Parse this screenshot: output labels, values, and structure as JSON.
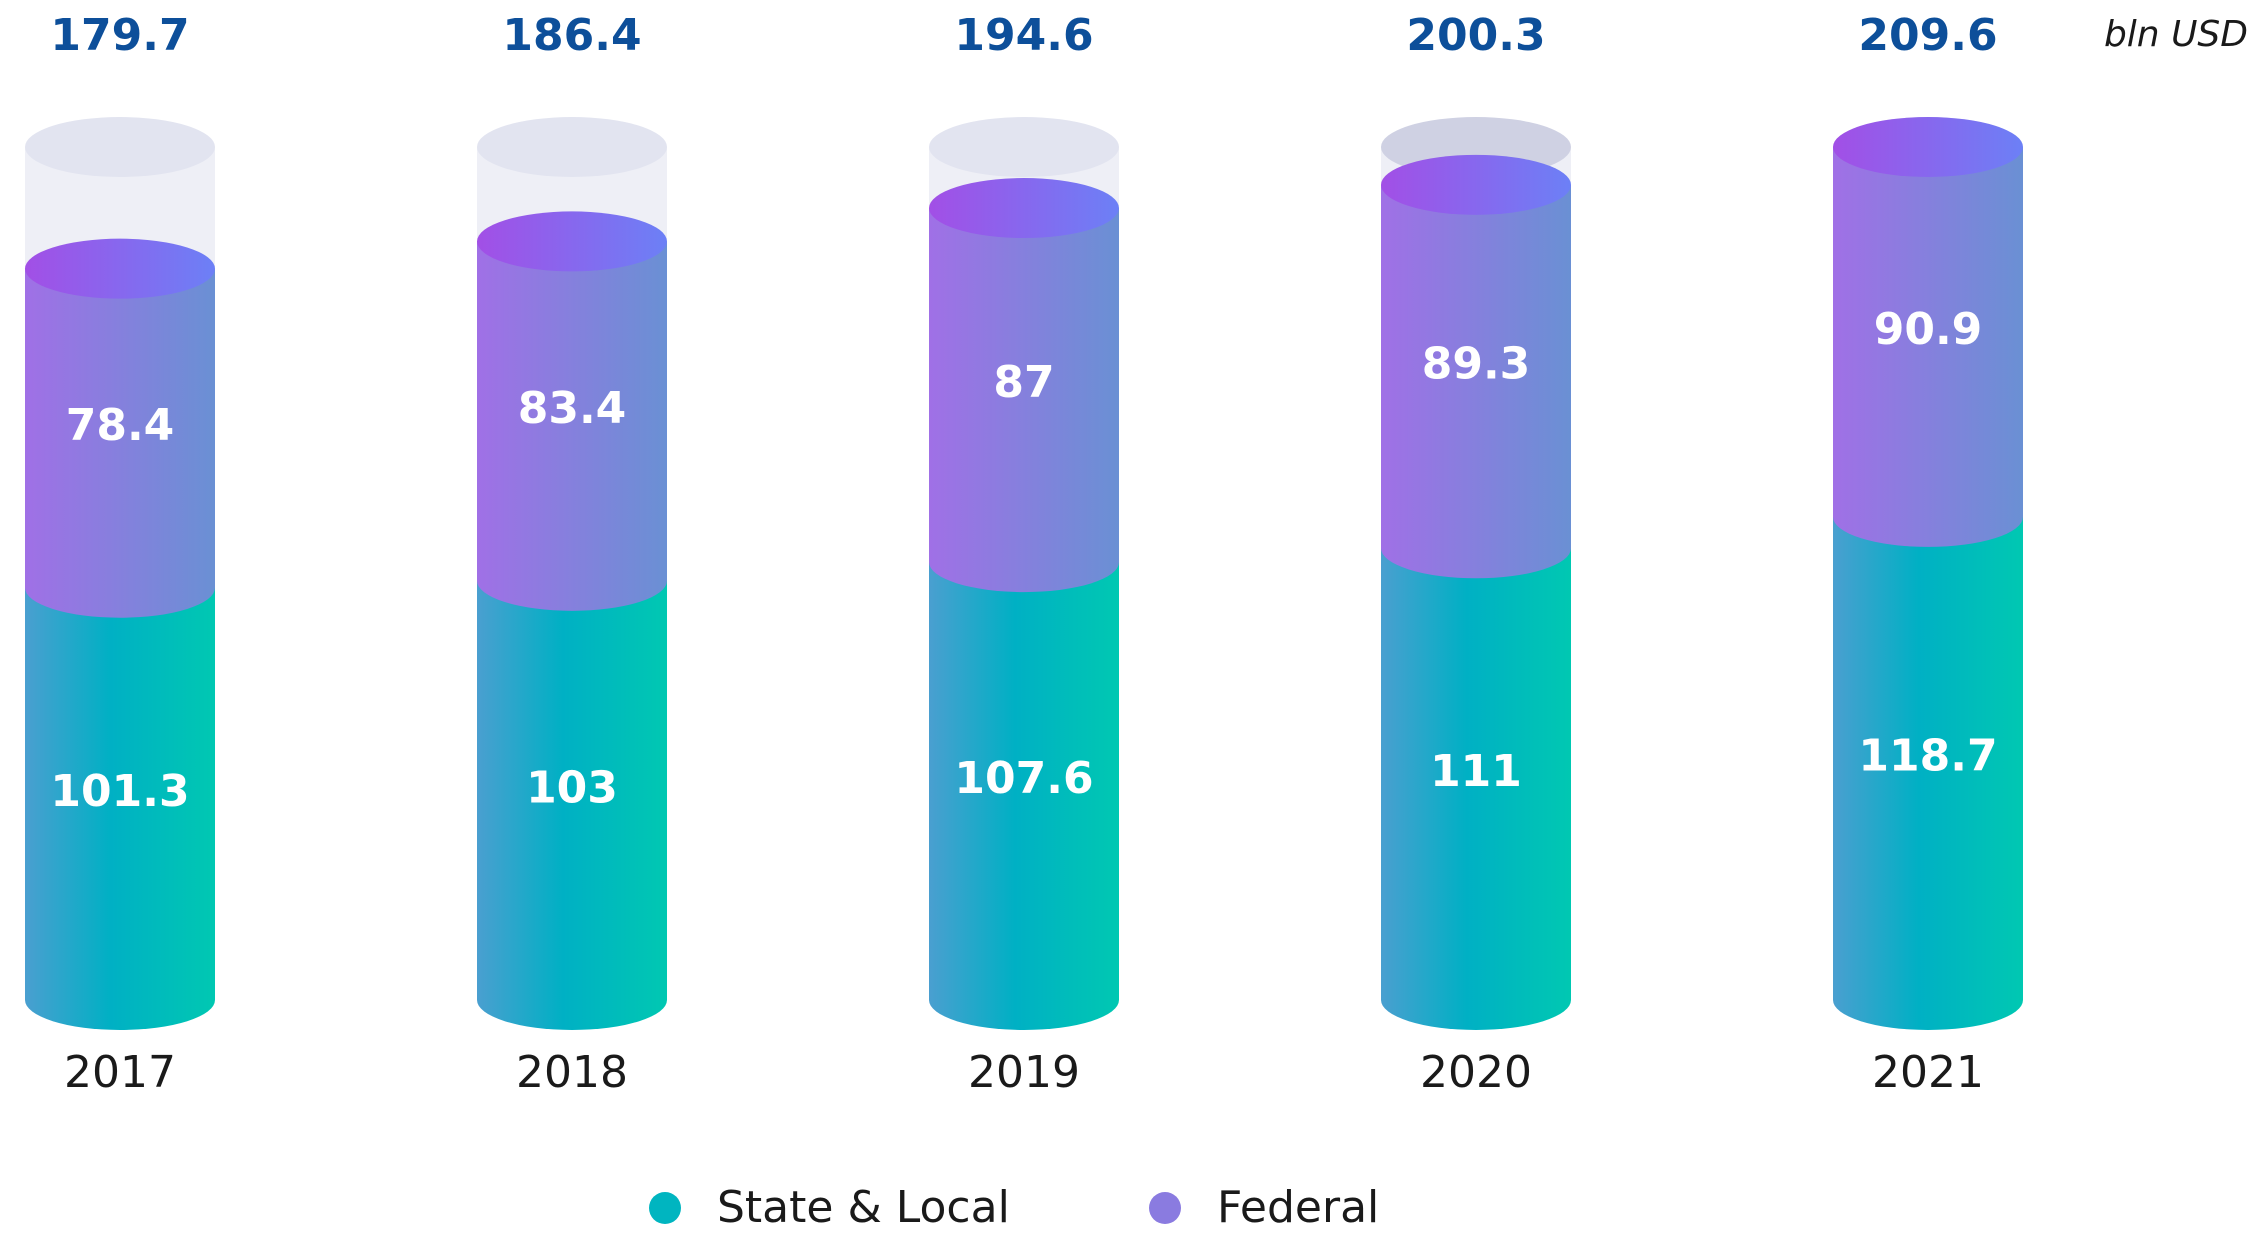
{
  "chart_data": {
    "type": "stacked_cylinder",
    "unit": "bln USD",
    "categories": [
      "2017",
      "2018",
      "2019",
      "2020",
      "2021"
    ],
    "totals": [
      179.7,
      186.4,
      194.6,
      200.3,
      209.6
    ],
    "series": [
      {
        "name": "State & Local",
        "color": "#00b5c0",
        "values": [
          101.3,
          103,
          107.6,
          111,
          118.7
        ]
      },
      {
        "name": "Federal",
        "color": "#8a7be0",
        "values": [
          78.4,
          83.4,
          87,
          89.3,
          90.9
        ]
      }
    ],
    "ylim": [
      0,
      209.6
    ],
    "legend": "bottom"
  }
}
